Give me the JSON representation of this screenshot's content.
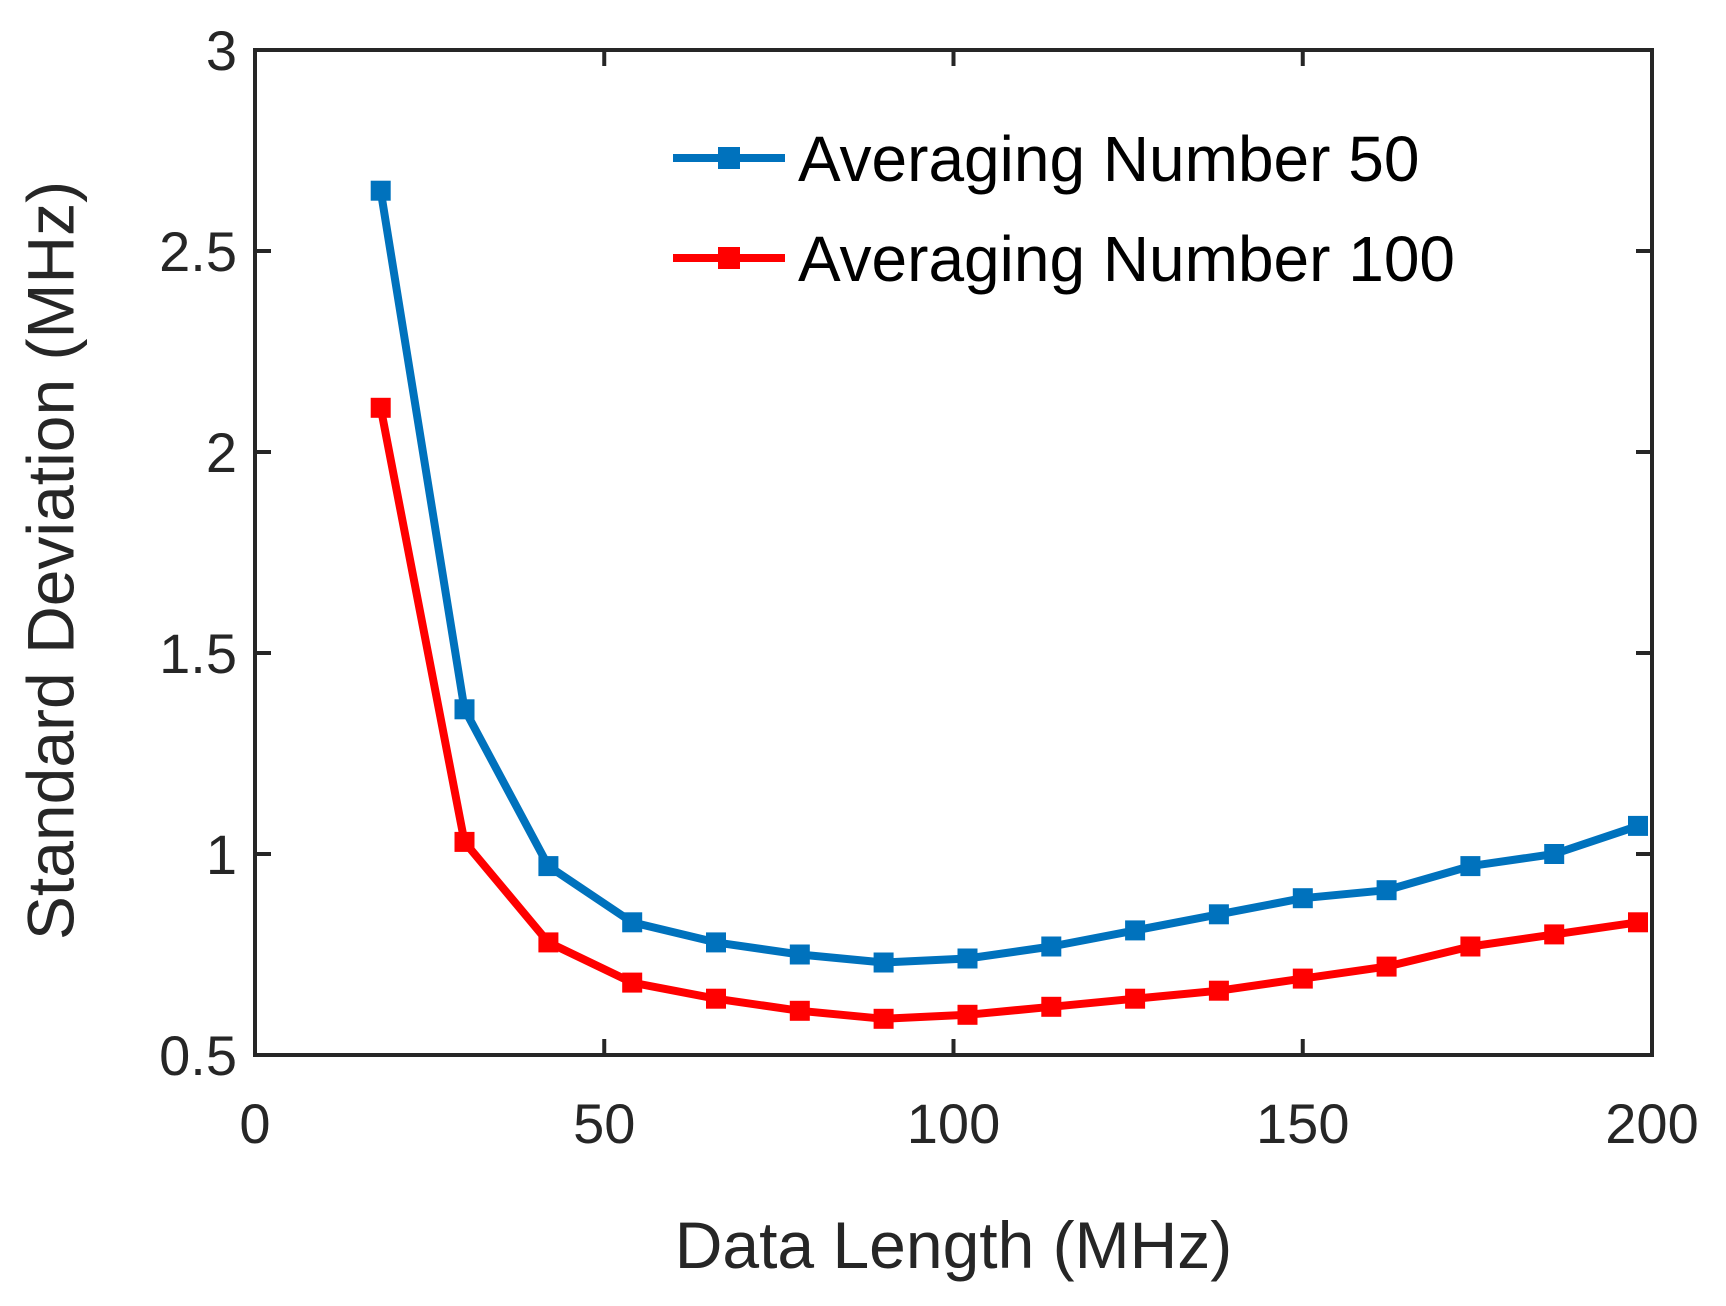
{
  "chart_data": {
    "type": "line",
    "title": "",
    "xlabel": "Data Length (MHz)",
    "ylabel": "Standard  Deviation (MHz)",
    "xlim": [
      0,
      200
    ],
    "ylim": [
      0.5,
      3
    ],
    "xticks": [
      0,
      50,
      100,
      150,
      200
    ],
    "xtick_labels": [
      "0",
      "50",
      "100",
      "150",
      "200"
    ],
    "yticks": [
      0.5,
      1,
      1.5,
      2,
      2.5,
      3
    ],
    "ytick_labels": [
      "0.5",
      "1",
      "1.5",
      "2",
      "2.5",
      "3"
    ],
    "grid": false,
    "legend_position": "top-right",
    "x": [
      18,
      30,
      42,
      54,
      66,
      78,
      90,
      102,
      114,
      126,
      138,
      150,
      162,
      174,
      186,
      198
    ],
    "series": [
      {
        "name": "Averaging Number 50",
        "color": "#0072BD",
        "marker": "square",
        "values": [
          2.65,
          1.36,
          0.97,
          0.83,
          0.78,
          0.75,
          0.73,
          0.74,
          0.77,
          0.81,
          0.85,
          0.89,
          0.91,
          0.97,
          1.0,
          1.07
        ]
      },
      {
        "name": "Averaging Number 100",
        "color": "#FF0000",
        "marker": "square",
        "values": [
          2.11,
          1.03,
          0.78,
          0.68,
          0.64,
          0.61,
          0.59,
          0.6,
          0.62,
          0.64,
          0.66,
          0.69,
          0.72,
          0.77,
          0.8,
          0.83
        ]
      }
    ]
  }
}
